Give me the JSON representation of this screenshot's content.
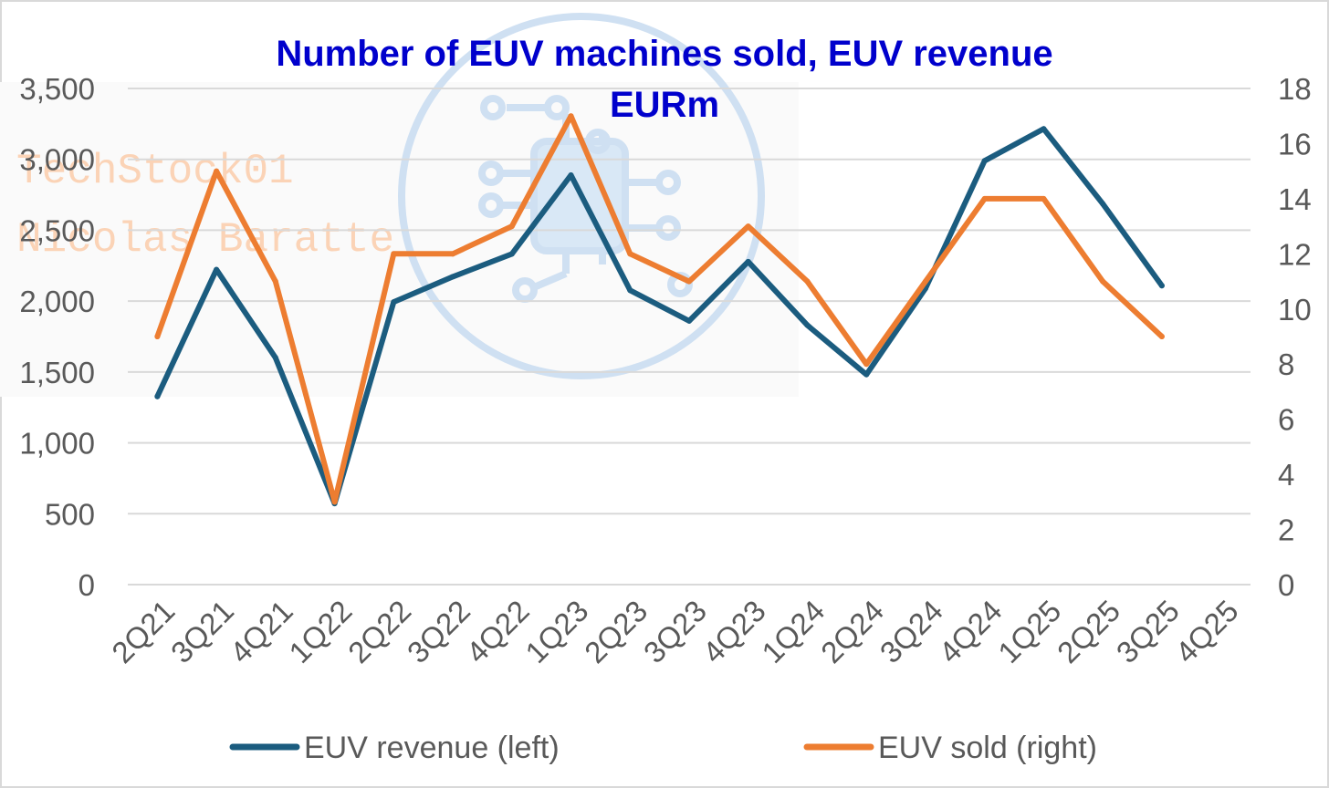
{
  "watermark": {
    "line1": "TechStock01",
    "line2": "Nicolas Baratte",
    "logo": "circuit-chip-logo"
  },
  "colors": {
    "title": "#0000cc",
    "revenue": "#1b5c7f",
    "sold": "#ed7d31",
    "grid": "#d9d9d9",
    "text": "#595959",
    "border": "#d9d9d9"
  },
  "chart_data": {
    "type": "line",
    "title": "Number of EUV machines sold, EUV revenue",
    "subtitle": "EURm",
    "categories": [
      "2Q21",
      "3Q21",
      "4Q21",
      "1Q22",
      "2Q22",
      "3Q22",
      "4Q22",
      "1Q23",
      "2Q23",
      "3Q23",
      "4Q23",
      "1Q24",
      "2Q24",
      "3Q24",
      "4Q24",
      "1Q25",
      "2Q25",
      "3Q25",
      "4Q25"
    ],
    "left_axis": {
      "min": 0,
      "max": 3500,
      "step": 500,
      "ticks": [
        "0",
        "500",
        "1,000",
        "1,500",
        "2,000",
        "2,500",
        "3,000",
        "3,500"
      ]
    },
    "right_axis": {
      "min": 0,
      "max": 18,
      "step": 2,
      "ticks": [
        "0",
        "2",
        "4",
        "6",
        "8",
        "10",
        "12",
        "14",
        "16",
        "18"
      ]
    },
    "grid": true,
    "legend_position": "bottom",
    "series": [
      {
        "name": "EUV revenue (left)",
        "axis": "left",
        "color": "#1b5c7f",
        "values": [
          1327,
          2222,
          1601,
          572,
          1994,
          2172,
          2333,
          2889,
          2076,
          1860,
          2278,
          1830,
          1482,
          2089,
          2990,
          3215,
          2686,
          2109,
          null
        ]
      },
      {
        "name": "EUV sold (right)",
        "axis": "right",
        "color": "#ed7d31",
        "values": [
          9,
          15,
          11,
          3,
          12,
          12,
          13,
          17,
          12,
          11,
          13,
          11,
          8,
          11,
          14,
          14,
          11,
          9,
          null
        ]
      }
    ]
  }
}
